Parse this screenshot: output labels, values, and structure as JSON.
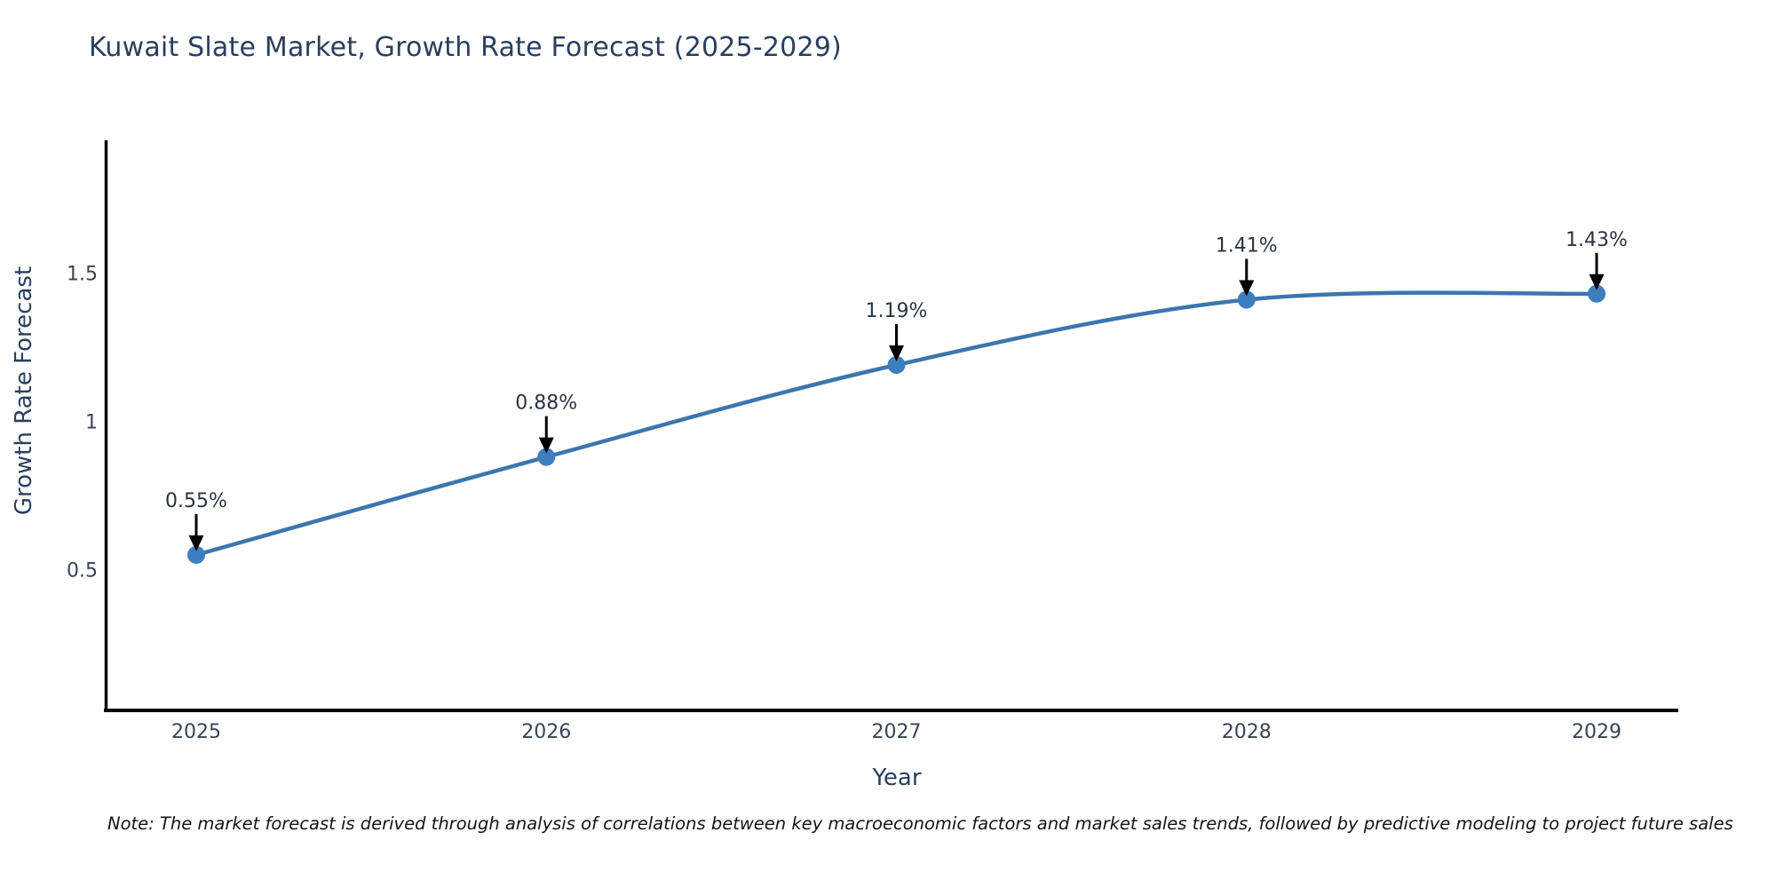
{
  "title": "Kuwait Slate Market, Growth Rate Forecast (2025-2029)",
  "note": "Note: The market forecast is derived through analysis of correlations between key macroeconomic factors and market sales trends, followed by predictive modeling to project future sales",
  "y_axis": {
    "label": "Growth Rate Forecast",
    "ticks": [
      0.5,
      1.0,
      1.5
    ],
    "tick_labels": [
      "0.5",
      "1",
      "1.5"
    ]
  },
  "x_axis": {
    "label": "Year",
    "tick_labels": [
      "2025",
      "2026",
      "2027",
      "2028",
      "2029"
    ]
  },
  "colors": {
    "line": "#3b76af",
    "marker": "#3e7ebf",
    "axis": "#000000",
    "arrow": "#000000",
    "title_text": "#2a3f5f",
    "note_text": "#141414"
  },
  "chart_data": {
    "type": "line",
    "title": "Kuwait Slate Market, Growth Rate Forecast (2025-2029)",
    "xlabel": "Year",
    "ylabel": "Growth Rate Forecast",
    "categories": [
      2025,
      2026,
      2027,
      2028,
      2029
    ],
    "series": [
      {
        "name": "Growth Rate Forecast",
        "values": [
          0.55,
          0.88,
          1.19,
          1.41,
          1.43
        ]
      }
    ],
    "data_labels": [
      "0.55%",
      "0.88%",
      "1.19%",
      "1.41%",
      "1.43%"
    ],
    "yticks": [
      0.5,
      1.0,
      1.5
    ],
    "ylim": [
      0.026,
      1.947
    ],
    "line_shape": "spline",
    "markers": true,
    "grid": false,
    "legend": false
  }
}
